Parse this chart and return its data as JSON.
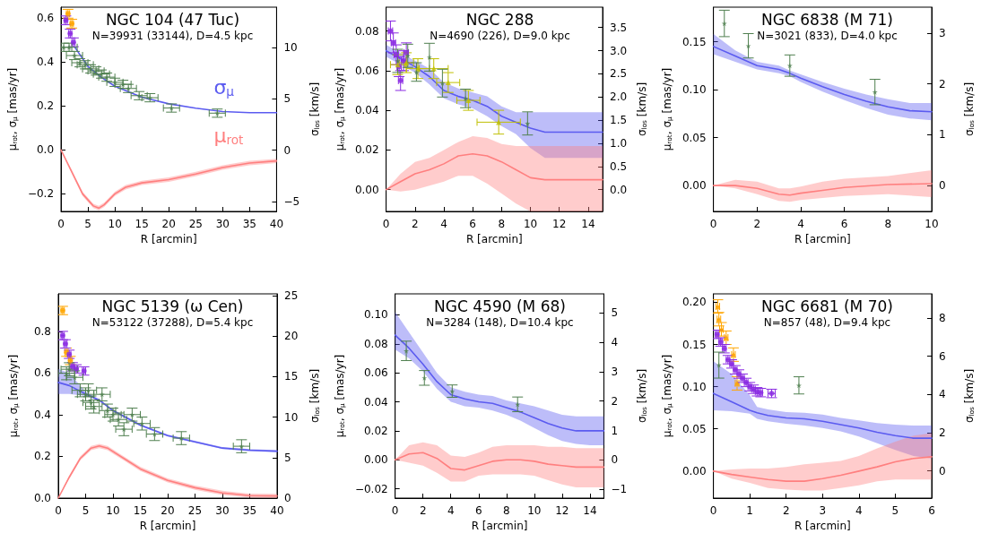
{
  "chart_data": [
    {
      "type": "line",
      "title": "NGC 104 (47 Tuc)",
      "subtitle": "N=39931 (33144), D=4.5 kpc",
      "xlabel": "R [arcmin]",
      "ylabel": "μ$_{rot}$, σ$_{μ}$ [mas/yr]",
      "y2label": "σ$_{los}$ [km/s]",
      "xlim": [
        0,
        40
      ],
      "xticks": [
        0,
        5,
        10,
        15,
        20,
        25,
        30,
        35,
        40
      ],
      "ylim": [
        -0.28,
        0.65
      ],
      "yticks": [
        {
          "value": -0.2,
          "label": "−0.2"
        },
        {
          "value": 0,
          "label": "0.0"
        },
        0.2,
        0.4,
        0.6
      ],
      "y2lim": [
        -5.95,
        13.9
      ],
      "y2ticks": [
        {
          "value": -5,
          "label": "−5"
        },
        0,
        5,
        10
      ],
      "series": [
        {
          "name": "σ$_{μ}$",
          "type": "line",
          "color": "#5b5bf0",
          "x": [
            2.5,
            5,
            7.5,
            10,
            15,
            20,
            25,
            30,
            35,
            40
          ],
          "values": [
            0.47,
            0.38,
            0.33,
            0.29,
            0.24,
            0.21,
            0.19,
            0.175,
            0.17,
            0.17
          ]
        },
        {
          "name": "μ$_{rot}$",
          "type": "line",
          "color": "#ff7f7f",
          "x": [
            0,
            2,
            4,
            6,
            7,
            8,
            10,
            12,
            15,
            20,
            25,
            30,
            35,
            40
          ],
          "values": [
            0,
            -0.1,
            -0.2,
            -0.255,
            -0.265,
            -0.25,
            -0.2,
            -0.17,
            -0.15,
            -0.135,
            -0.11,
            -0.08,
            -0.06,
            -0.05
          ],
          "lower": [
            0,
            -0.108,
            -0.21,
            -0.265,
            -0.275,
            -0.26,
            -0.21,
            -0.18,
            -0.16,
            -0.145,
            -0.12,
            -0.09,
            -0.07,
            -0.06
          ],
          "upper": [
            0,
            -0.092,
            -0.19,
            -0.245,
            -0.255,
            -0.24,
            -0.19,
            -0.16,
            -0.14,
            -0.125,
            -0.1,
            -0.07,
            -0.05,
            -0.04
          ]
        },
        {
          "type": "scatter",
          "marker": "circle",
          "color": "#ffa500",
          "x": [
            1.3,
            2
          ],
          "values": [
            0.62,
            0.575
          ],
          "errors": [
            0.02,
            0.02
          ],
          "xerrors": [
            0.3,
            0.3
          ]
        },
        {
          "type": "scatter",
          "marker": "circle",
          "color": "#8a2be2",
          "x": [
            0.9,
            1.7,
            2.3
          ],
          "values": [
            0.59,
            0.53,
            0.49
          ],
          "errors": [
            0.02,
            0.02,
            0.02
          ],
          "xerrors": [
            0.3,
            0.3,
            0.3
          ]
        },
        {
          "type": "scatter",
          "marker": "star",
          "axis": "y2",
          "color": "#4f7f4f",
          "x": [
            0.5,
            1.5,
            2.5,
            3.5,
            4.5,
            5.5,
            6.5,
            7.5,
            8.5,
            10,
            11.5,
            12.5,
            14.5,
            16.5,
            20.5,
            29
          ],
          "values": [
            10,
            10,
            9.2,
            8.5,
            8.3,
            7.9,
            7.7,
            7.4,
            7.1,
            6.6,
            6.4,
            6,
            5.3,
            5.1,
            4.1,
            3.6
          ],
          "errors": [
            0.4,
            0.4,
            0.4,
            0.4,
            0.4,
            0.4,
            0.4,
            0.4,
            0.4,
            0.4,
            0.4,
            0.4,
            0.4,
            0.4,
            0.4,
            0.4
          ],
          "xerrors": [
            1.5,
            1.5,
            1.5,
            1.5,
            1.5,
            1.5,
            1.5,
            1.5,
            1.5,
            1.5,
            1.5,
            1.5,
            1.5,
            1.5,
            1.5,
            1.5
          ]
        }
      ]
    },
    {
      "type": "line",
      "title": "NGC 288",
      "subtitle": "N=4690 (226), D=9.0 kpc",
      "xlabel": "R [arcmin]",
      "ylabel": "μ$_{rot}$, σ$_{μ}$ [mas/yr]",
      "y2label": "σ$_{los}$ [km/s]",
      "xlim": [
        0,
        15
      ],
      "xticks": [
        0,
        2,
        4,
        6,
        8,
        10,
        12,
        14
      ],
      "ylim": [
        -0.011,
        0.092
      ],
      "yticks": [
        {
          "value": 0,
          "label": "0.00"
        },
        {
          "value": 0.02,
          "label": "0.02"
        },
        {
          "value": 0.04,
          "label": "0.04"
        },
        {
          "value": 0.06,
          "label": "0.06"
        },
        {
          "value": 0.08,
          "label": "0.08"
        }
      ],
      "y2lim": [
        -0.47,
        3.94
      ],
      "y2ticks": [
        {
          "value": 0,
          "label": "0.0"
        },
        0.5,
        {
          "value": 1,
          "label": "1.0"
        },
        1.5,
        {
          "value": 2,
          "label": "2.0"
        },
        2.5,
        {
          "value": 3,
          "label": "3.0"
        },
        3.5
      ],
      "series": [
        {
          "type": "line",
          "color": "#5b5bf0",
          "x": [
            0,
            1,
            2,
            3,
            4,
            5,
            6,
            7,
            8,
            9,
            10,
            11,
            12,
            15
          ],
          "values": [
            0.07,
            0.066,
            0.062,
            0.057,
            0.05,
            0.047,
            0.045,
            0.042,
            0.037,
            0.034,
            0.031,
            0.029,
            0.029,
            0.029
          ],
          "lower": [
            0.067,
            0.063,
            0.059,
            0.053,
            0.046,
            0.043,
            0.041,
            0.037,
            0.032,
            0.028,
            0.021,
            0.016,
            0.016,
            0.016
          ],
          "upper": [
            0.073,
            0.069,
            0.065,
            0.061,
            0.054,
            0.051,
            0.049,
            0.047,
            0.042,
            0.039,
            0.039,
            0.039,
            0.039,
            0.039
          ]
        },
        {
          "type": "line",
          "color": "#ff7f7f",
          "x": [
            0,
            1,
            2,
            3,
            4,
            5,
            6,
            7,
            8,
            9,
            10,
            11,
            15
          ],
          "values": [
            0,
            0.004,
            0.008,
            0.01,
            0.013,
            0.017,
            0.018,
            0.017,
            0.014,
            0.01,
            0.006,
            0.005,
            0.005
          ],
          "lower": [
            0,
            -0.001,
            0,
            0.002,
            0.004,
            0.007,
            0.007,
            0.003,
            -0.002,
            -0.007,
            -0.011,
            -0.011,
            -0.011
          ],
          "upper": [
            0,
            0.008,
            0.014,
            0.016,
            0.02,
            0.024,
            0.027,
            0.026,
            0.023,
            0.022,
            0.022,
            0.022,
            0.022
          ]
        },
        {
          "type": "scatter",
          "marker": "circle",
          "color": "#8a2be2",
          "x": [
            0.3,
            0.5,
            0.7,
            0.9,
            1,
            1.2,
            1.4
          ],
          "values": [
            0.08,
            0.074,
            0.068,
            0.062,
            0.055,
            0.065,
            0.069
          ],
          "errors": [
            0.005,
            0.005,
            0.005,
            0.005,
            0.005,
            0.005,
            0.005
          ],
          "xerrors": [
            0.15,
            0.15,
            0.15,
            0.15,
            0.15,
            0.15,
            0.15
          ]
        },
        {
          "type": "scatter",
          "marker": "triangle",
          "color": "#bfbf00",
          "x": [
            0.8,
            1.4,
            2.2,
            3.3,
            4.3,
            5.7,
            7.8
          ],
          "values": [
            0.063,
            0.064,
            0.061,
            0.061,
            0.054,
            0.045,
            0.034
          ],
          "errors": [
            0.005,
            0.005,
            0.005,
            0.005,
            0.005,
            0.005,
            0.006
          ],
          "xerrors": [
            0.5,
            0.5,
            0.8,
            1,
            0.8,
            0.8,
            1.5
          ]
        },
        {
          "type": "scatter",
          "marker": "star",
          "axis": "y2",
          "color": "#4f7f4f",
          "x": [
            0.8,
            1.5,
            2.1,
            3,
            3.9,
            5.5,
            9.8
          ],
          "values": [
            2.78,
            2.89,
            2.54,
            2.86,
            2.3,
            1.97,
            1.43
          ],
          "errors": [
            0.25,
            0.25,
            0.2,
            0.3,
            0.3,
            0.2,
            0.25
          ]
        }
      ]
    },
    {
      "type": "line",
      "title": "NGC 6838 (M 71)",
      "subtitle": "N=3021 (833), D=4.0 kpc",
      "xlabel": "R [arcmin]",
      "ylabel": "μ$_{rot}$, σ$_{μ}$ [mas/yr]",
      "y2label": "σ$_{los}$ [km/s]",
      "xlim": [
        0,
        10
      ],
      "xticks": [
        0,
        2,
        4,
        6,
        8,
        10
      ],
      "ylim": [
        -0.027,
        0.186
      ],
      "yticks": [
        {
          "value": 0,
          "label": "0.00"
        },
        {
          "value": 0.05,
          "label": "0.05"
        },
        {
          "value": 0.1,
          "label": "0.10"
        },
        {
          "value": 0.15,
          "label": "0.15"
        }
      ],
      "y2lim": [
        -0.51,
        3.51
      ],
      "y2ticks": [
        0,
        1,
        2,
        3
      ],
      "series": [
        {
          "type": "line",
          "color": "#5b5bf0",
          "x": [
            0,
            1,
            2,
            3,
            3.5,
            4,
            5,
            6,
            7,
            8,
            9,
            10
          ],
          "values": [
            0.145,
            0.135,
            0.125,
            0.121,
            0.117,
            0.112,
            0.103,
            0.095,
            0.088,
            0.082,
            0.078,
            0.077
          ],
          "lower": [
            0.137,
            0.129,
            0.121,
            0.117,
            0.114,
            0.108,
            0.098,
            0.089,
            0.081,
            0.074,
            0.07,
            0.068
          ],
          "upper": [
            0.158,
            0.141,
            0.129,
            0.125,
            0.12,
            0.116,
            0.108,
            0.101,
            0.095,
            0.09,
            0.086,
            0.086
          ]
        },
        {
          "type": "line",
          "color": "#ff7f7f",
          "x": [
            0,
            1,
            2,
            3,
            3.5,
            4,
            5,
            6,
            8,
            10
          ],
          "values": [
            0,
            0,
            -0.003,
            -0.009,
            -0.01,
            -0.008,
            -0.005,
            -0.002,
            0.001,
            0.002
          ],
          "lower": [
            0,
            -0.003,
            -0.009,
            -0.016,
            -0.017,
            -0.015,
            -0.013,
            -0.011,
            -0.009,
            -0.012
          ],
          "upper": [
            0,
            0.006,
            0.004,
            -0.003,
            -0.003,
            -0.001,
            0.004,
            0.007,
            0.01,
            0.016
          ]
        },
        {
          "type": "scatter",
          "marker": "star",
          "axis": "y2",
          "color": "#4f7f4f",
          "x": [
            0.5,
            1.6,
            3.5,
            7.4
          ],
          "values": [
            3.19,
            2.75,
            2.36,
            1.84
          ],
          "errors": [
            0.26,
            0.24,
            0.21,
            0.25
          ]
        }
      ]
    },
    {
      "type": "line",
      "title": "NGC 5139 (ω Cen)",
      "subtitle": "N=53122 (37288), D=5.4 kpc",
      "xlabel": "R [arcmin]",
      "ylabel": "μ$_{rot}$, σ$_{μ}$ [mas/yr]",
      "y2label": "σ$_{los}$ [km/s]",
      "xlim": [
        0,
        40
      ],
      "xticks": [
        0,
        5,
        10,
        15,
        20,
        25,
        30,
        35,
        40
      ],
      "ylim": [
        0,
        0.98
      ],
      "yticks": [
        {
          "value": 0,
          "label": "0.0"
        },
        0.2,
        0.4,
        0.6,
        0.8
      ],
      "y2lim": [
        0,
        25.2
      ],
      "y2ticks": [
        0,
        5,
        10,
        15,
        20,
        25
      ],
      "series": [
        {
          "type": "line",
          "color": "#5b5bf0",
          "x": [
            0,
            2,
            5,
            7.5,
            10,
            15,
            20,
            25,
            30,
            35,
            40
          ],
          "values": [
            0.555,
            0.54,
            0.5,
            0.47,
            0.42,
            0.35,
            0.3,
            0.27,
            0.24,
            0.23,
            0.225
          ],
          "lower": [
            0.5,
            0.5,
            0.49,
            0.465,
            0.415,
            0.345,
            0.295,
            0.265,
            0.235,
            0.225,
            0.22
          ],
          "upper": [
            0.62,
            0.6,
            0.51,
            0.475,
            0.425,
            0.355,
            0.305,
            0.275,
            0.245,
            0.235,
            0.23
          ]
        },
        {
          "type": "line",
          "color": "#ff7f7f",
          "x": [
            0,
            2,
            4,
            6,
            7.5,
            9,
            12,
            15,
            20,
            25,
            30,
            35,
            40
          ],
          "values": [
            0,
            0.1,
            0.19,
            0.24,
            0.25,
            0.24,
            0.19,
            0.14,
            0.085,
            0.05,
            0.025,
            0.012,
            0.01
          ],
          "lower": [
            0,
            0.092,
            0.18,
            0.23,
            0.24,
            0.23,
            0.18,
            0.13,
            0.075,
            0.04,
            0.015,
            0.002,
            0
          ],
          "upper": [
            0,
            0.108,
            0.2,
            0.25,
            0.26,
            0.25,
            0.2,
            0.15,
            0.095,
            0.06,
            0.035,
            0.022,
            0.02
          ]
        },
        {
          "type": "scatter",
          "marker": "circle",
          "color": "#ffa500",
          "x": [
            0.8,
            1.5,
            2.2
          ],
          "values": [
            0.9,
            0.7,
            0.66
          ],
          "errors": [
            0.02,
            0.02,
            0.02
          ],
          "xerrors": [
            0.3,
            0.3,
            0.3
          ]
        },
        {
          "type": "scatter",
          "marker": "circle",
          "color": "#8a2be2",
          "x": [
            0.8,
            1.3,
            2,
            2.6,
            3.3,
            4.7
          ],
          "values": [
            0.78,
            0.74,
            0.69,
            0.63,
            0.62,
            0.61
          ],
          "errors": [
            0.02,
            0.02,
            0.02,
            0.02,
            0.02,
            0.02
          ],
          "xerrors": [
            0.3,
            0.3,
            0.3,
            0.3,
            0.3,
            0.3
          ]
        },
        {
          "type": "scatter",
          "marker": "star",
          "axis": "y2",
          "color": "#4f7f4f",
          "x": [
            1.5,
            2,
            3,
            4,
            5,
            5.5,
            6,
            6.5,
            8,
            9,
            10,
            11,
            12,
            13.5,
            15.3,
            17.6,
            22.5,
            33.5
          ],
          "values": [
            15.4,
            15.9,
            14.9,
            13.3,
            12.8,
            13.3,
            11.8,
            11.3,
            12.8,
            10.8,
            10.3,
            9.7,
            8.5,
            10.3,
            9.2,
            7.9,
            7.4,
            6.4
          ],
          "errors": [
            0.8,
            0.8,
            0.8,
            0.8,
            0.8,
            0.8,
            0.8,
            0.8,
            0.8,
            0.8,
            0.8,
            0.8,
            0.8,
            0.8,
            0.8,
            0.8,
            0.8,
            0.8
          ],
          "xerrors": [
            1.5,
            1.5,
            1.5,
            1.5,
            1.5,
            1.5,
            1.5,
            1.5,
            1.5,
            1.5,
            1.5,
            1.5,
            1.5,
            1.5,
            1.5,
            1.5,
            1.5,
            1.5
          ]
        }
      ]
    },
    {
      "type": "line",
      "title": "NGC 4590 (M 68)",
      "subtitle": "N=3284 (148), D=10.4 kpc",
      "xlabel": "R [arcmin]",
      "ylabel": "μ$_{rot}$, σ$_{μ}$ [mas/yr]",
      "y2label": "σ$_{los}$ [km/s]",
      "xlim": [
        0,
        15
      ],
      "xticks": [
        0,
        2,
        4,
        6,
        8,
        10,
        12,
        14
      ],
      "ylim": [
        -0.0264,
        0.1145
      ],
      "yticks": [
        {
          "value": -0.02,
          "label": "−0.02"
        },
        {
          "value": 0,
          "label": "0.00"
        },
        {
          "value": 0.02,
          "label": "0.02"
        },
        {
          "value": 0.04,
          "label": "0.04"
        },
        {
          "value": 0.06,
          "label": "0.06"
        },
        {
          "value": 0.08,
          "label": "0.08"
        },
        {
          "value": 0.1,
          "label": "0.10"
        }
      ],
      "y2lim": [
        -1.3,
        5.65
      ],
      "y2ticks": [
        {
          "value": -1,
          "label": "−1"
        },
        0,
        1,
        2,
        3,
        4,
        5
      ],
      "series": [
        {
          "type": "line",
          "color": "#5b5bf0",
          "x": [
            0,
            1,
            2,
            3,
            4,
            5,
            6,
            7,
            8,
            9,
            10,
            11,
            12,
            13,
            14,
            15
          ],
          "values": [
            0.086,
            0.077,
            0.066,
            0.054,
            0.045,
            0.042,
            0.04,
            0.039,
            0.036,
            0.033,
            0.029,
            0.025,
            0.022,
            0.02,
            0.02,
            0.02
          ],
          "lower": [
            0.076,
            0.07,
            0.061,
            0.049,
            0.04,
            0.037,
            0.036,
            0.034,
            0.031,
            0.027,
            0.022,
            0.017,
            0.013,
            0.011,
            0.01,
            0.01
          ],
          "upper": [
            0.102,
            0.088,
            0.074,
            0.06,
            0.05,
            0.047,
            0.045,
            0.044,
            0.041,
            0.039,
            0.037,
            0.034,
            0.031,
            0.03,
            0.03,
            0.03
          ]
        },
        {
          "type": "line",
          "color": "#ff7f7f",
          "x": [
            0,
            1,
            2,
            3,
            4,
            5,
            6,
            7,
            8,
            9,
            10,
            11,
            12,
            13,
            14,
            15
          ],
          "values": [
            0,
            0.004,
            0.005,
            0.001,
            -0.006,
            -0.007,
            -0.004,
            -0.001,
            0,
            0,
            -0.001,
            -0.003,
            -0.004,
            -0.005,
            -0.005,
            -0.005
          ],
          "lower": [
            0,
            -0.002,
            -0.004,
            -0.009,
            -0.015,
            -0.015,
            -0.011,
            -0.01,
            -0.01,
            -0.01,
            -0.011,
            -0.014,
            -0.017,
            -0.019,
            -0.019,
            -0.019
          ],
          "upper": [
            0,
            0.01,
            0.012,
            0.01,
            0.003,
            0.002,
            0.005,
            0.009,
            0.01,
            0.01,
            0.01,
            0.009,
            0.009,
            0.008,
            0.008,
            0.008
          ]
        },
        {
          "type": "scatter",
          "marker": "star",
          "axis": "y2",
          "color": "#4f7f4f",
          "x": [
            0.8,
            2.1,
            4.1,
            8.8
          ],
          "values": [
            3.71,
            2.79,
            2.34,
            1.89
          ],
          "errors": [
            0.33,
            0.25,
            0.21,
            0.25
          ]
        }
      ]
    },
    {
      "type": "line",
      "title": "NGC 6681 (M 70)",
      "subtitle": "N=857 (48), D=9.4 kpc",
      "xlabel": "R [arcmin]",
      "ylabel": "μ$_{rot}$, σ$_{μ}$ [mas/yr]",
      "y2label": "σ$_{los}$ [km/s]",
      "xlim": [
        0,
        6
      ],
      "xticks": [
        0,
        1,
        2,
        3,
        4,
        5,
        6
      ],
      "ylim": [
        -0.032,
        0.21
      ],
      "yticks": [
        {
          "value": 0,
          "label": "0.00"
        },
        {
          "value": 0.05,
          "label": "0.05"
        },
        {
          "value": 0.1,
          "label": "0.10"
        },
        {
          "value": 0.15,
          "label": "0.15"
        },
        {
          "value": 0.2,
          "label": "0.20"
        }
      ],
      "y2lim": [
        -1.42,
        9.27
      ],
      "y2ticks": [
        0,
        2,
        4,
        6,
        8
      ],
      "series": [
        {
          "type": "line",
          "color": "#5b5bf0",
          "x": [
            0,
            0.5,
            1,
            1.2,
            1.5,
            2,
            2.5,
            3,
            3.5,
            4,
            4.5,
            5,
            5.5,
            6
          ],
          "values": [
            0.092,
            0.082,
            0.072,
            0.069,
            0.066,
            0.063,
            0.062,
            0.059,
            0.055,
            0.051,
            0.046,
            0.042,
            0.039,
            0.039
          ],
          "lower": [
            0.072,
            0.071,
            0.068,
            0.062,
            0.059,
            0.056,
            0.054,
            0.051,
            0.047,
            0.041,
            0.033,
            0.025,
            0.018,
            0.015
          ],
          "upper": [
            0.13,
            0.115,
            0.09,
            0.076,
            0.073,
            0.07,
            0.069,
            0.067,
            0.063,
            0.06,
            0.057,
            0.055,
            0.054,
            0.054
          ]
        },
        {
          "type": "line",
          "color": "#ff7f7f",
          "x": [
            0,
            0.5,
            1,
            1.5,
            2,
            2.5,
            3,
            3.5,
            4,
            4.5,
            5,
            5.5,
            6
          ],
          "values": [
            0,
            -0.004,
            -0.007,
            -0.01,
            -0.012,
            -0.012,
            -0.009,
            -0.005,
            0,
            0.005,
            0.011,
            0.015,
            0.017
          ],
          "lower": [
            0,
            -0.009,
            -0.014,
            -0.02,
            -0.022,
            -0.023,
            -0.023,
            -0.02,
            -0.017,
            -0.012,
            -0.01,
            -0.01,
            -0.01
          ],
          "upper": [
            0,
            0.002,
            0.003,
            0.003,
            0.005,
            0.008,
            0.01,
            0.012,
            0.018,
            0.027,
            0.035,
            0.042,
            0.045
          ]
        },
        {
          "type": "scatter",
          "marker": "triangle",
          "color": "#ffa500",
          "x": [
            0.12,
            0.15,
            0.22,
            0.35,
            0.55,
            0.65
          ],
          "values": [
            0.195,
            0.18,
            0.168,
            0.158,
            0.138,
            0.104
          ],
          "errors": [
            0.008,
            0.008,
            0.008,
            0.008,
            0.008,
            0.008
          ],
          "xerrors": [
            0.05,
            0.05,
            0.05,
            0.05,
            0.05,
            0.05
          ]
        },
        {
          "type": "scatter",
          "marker": "circle",
          "color": "#8a2be2",
          "x": [
            0.1,
            0.2,
            0.3,
            0.4,
            0.5,
            0.6,
            0.7,
            0.8,
            0.9,
            1,
            1.1,
            1.2,
            1.3,
            1.6
          ],
          "values": [
            0.162,
            0.153,
            0.145,
            0.132,
            0.127,
            0.12,
            0.115,
            0.11,
            0.105,
            0.1,
            0.097,
            0.094,
            0.093,
            0.092
          ],
          "errors": [
            0.005,
            0.005,
            0.005,
            0.005,
            0.005,
            0.005,
            0.005,
            0.005,
            0.005,
            0.005,
            0.005,
            0.005,
            0.005,
            0.005
          ],
          "xerrors": [
            0.05,
            0.05,
            0.05,
            0.05,
            0.05,
            0.05,
            0.05,
            0.05,
            0.05,
            0.05,
            0.05,
            0.05,
            0.05,
            0.1
          ]
        },
        {
          "type": "scatter",
          "marker": "star",
          "axis": "y2",
          "color": "#4f7f4f",
          "x": [
            0.15,
            2.35
          ],
          "values": [
            5.54,
            4.48
          ],
          "errors": [
            0.68,
            0.45
          ]
        }
      ]
    }
  ]
}
